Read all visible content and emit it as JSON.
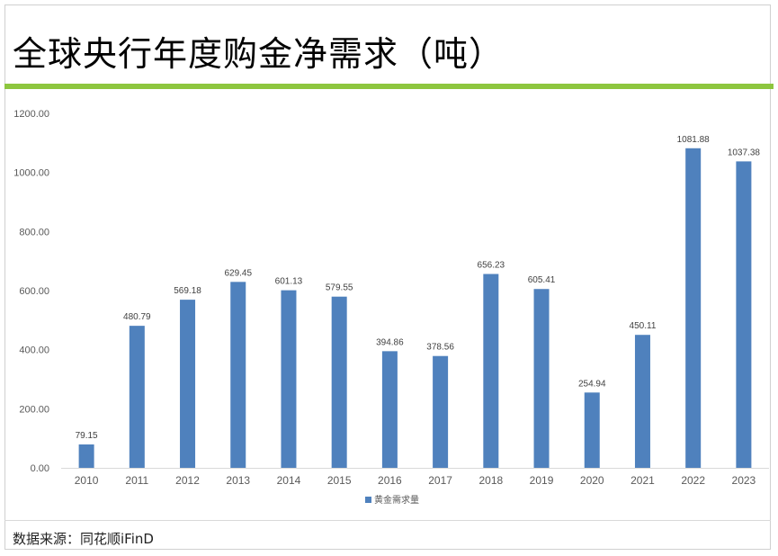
{
  "page": {
    "title": "全球央行年度购金净需求（吨）",
    "source": "数据来源：同花顺iFinD"
  },
  "colors": {
    "bar": "#4f81bd",
    "accent": "#8dc63f",
    "axis_text": "#595959",
    "label_text": "#404040"
  },
  "chart_data": {
    "type": "bar",
    "title": "全球央行年度购金净需求（吨）",
    "categories": [
      "2010",
      "2011",
      "2012",
      "2013",
      "2014",
      "2015",
      "2016",
      "2017",
      "2018",
      "2019",
      "2020",
      "2021",
      "2022",
      "2023"
    ],
    "series": [
      {
        "name": "黄金需求量",
        "values": [
          79.15,
          480.79,
          569.18,
          629.45,
          601.13,
          579.55,
          394.86,
          378.56,
          656.23,
          605.41,
          254.94,
          450.11,
          1081.88,
          1037.38
        ],
        "labels": [
          "79.15",
          "480.79",
          "569.18",
          "629.45",
          "601.13",
          "579.55",
          "394.86",
          "378.56",
          "656.23",
          "605.41",
          "254.94",
          "450.11",
          "1081.88",
          "1037.38"
        ]
      }
    ],
    "ylim": [
      0,
      1200
    ],
    "yticks": [
      "0.00",
      "200.00",
      "400.00",
      "600.00",
      "800.00",
      "1000.00",
      "1200.00"
    ],
    "grid": false,
    "legend": "bottom-center"
  }
}
